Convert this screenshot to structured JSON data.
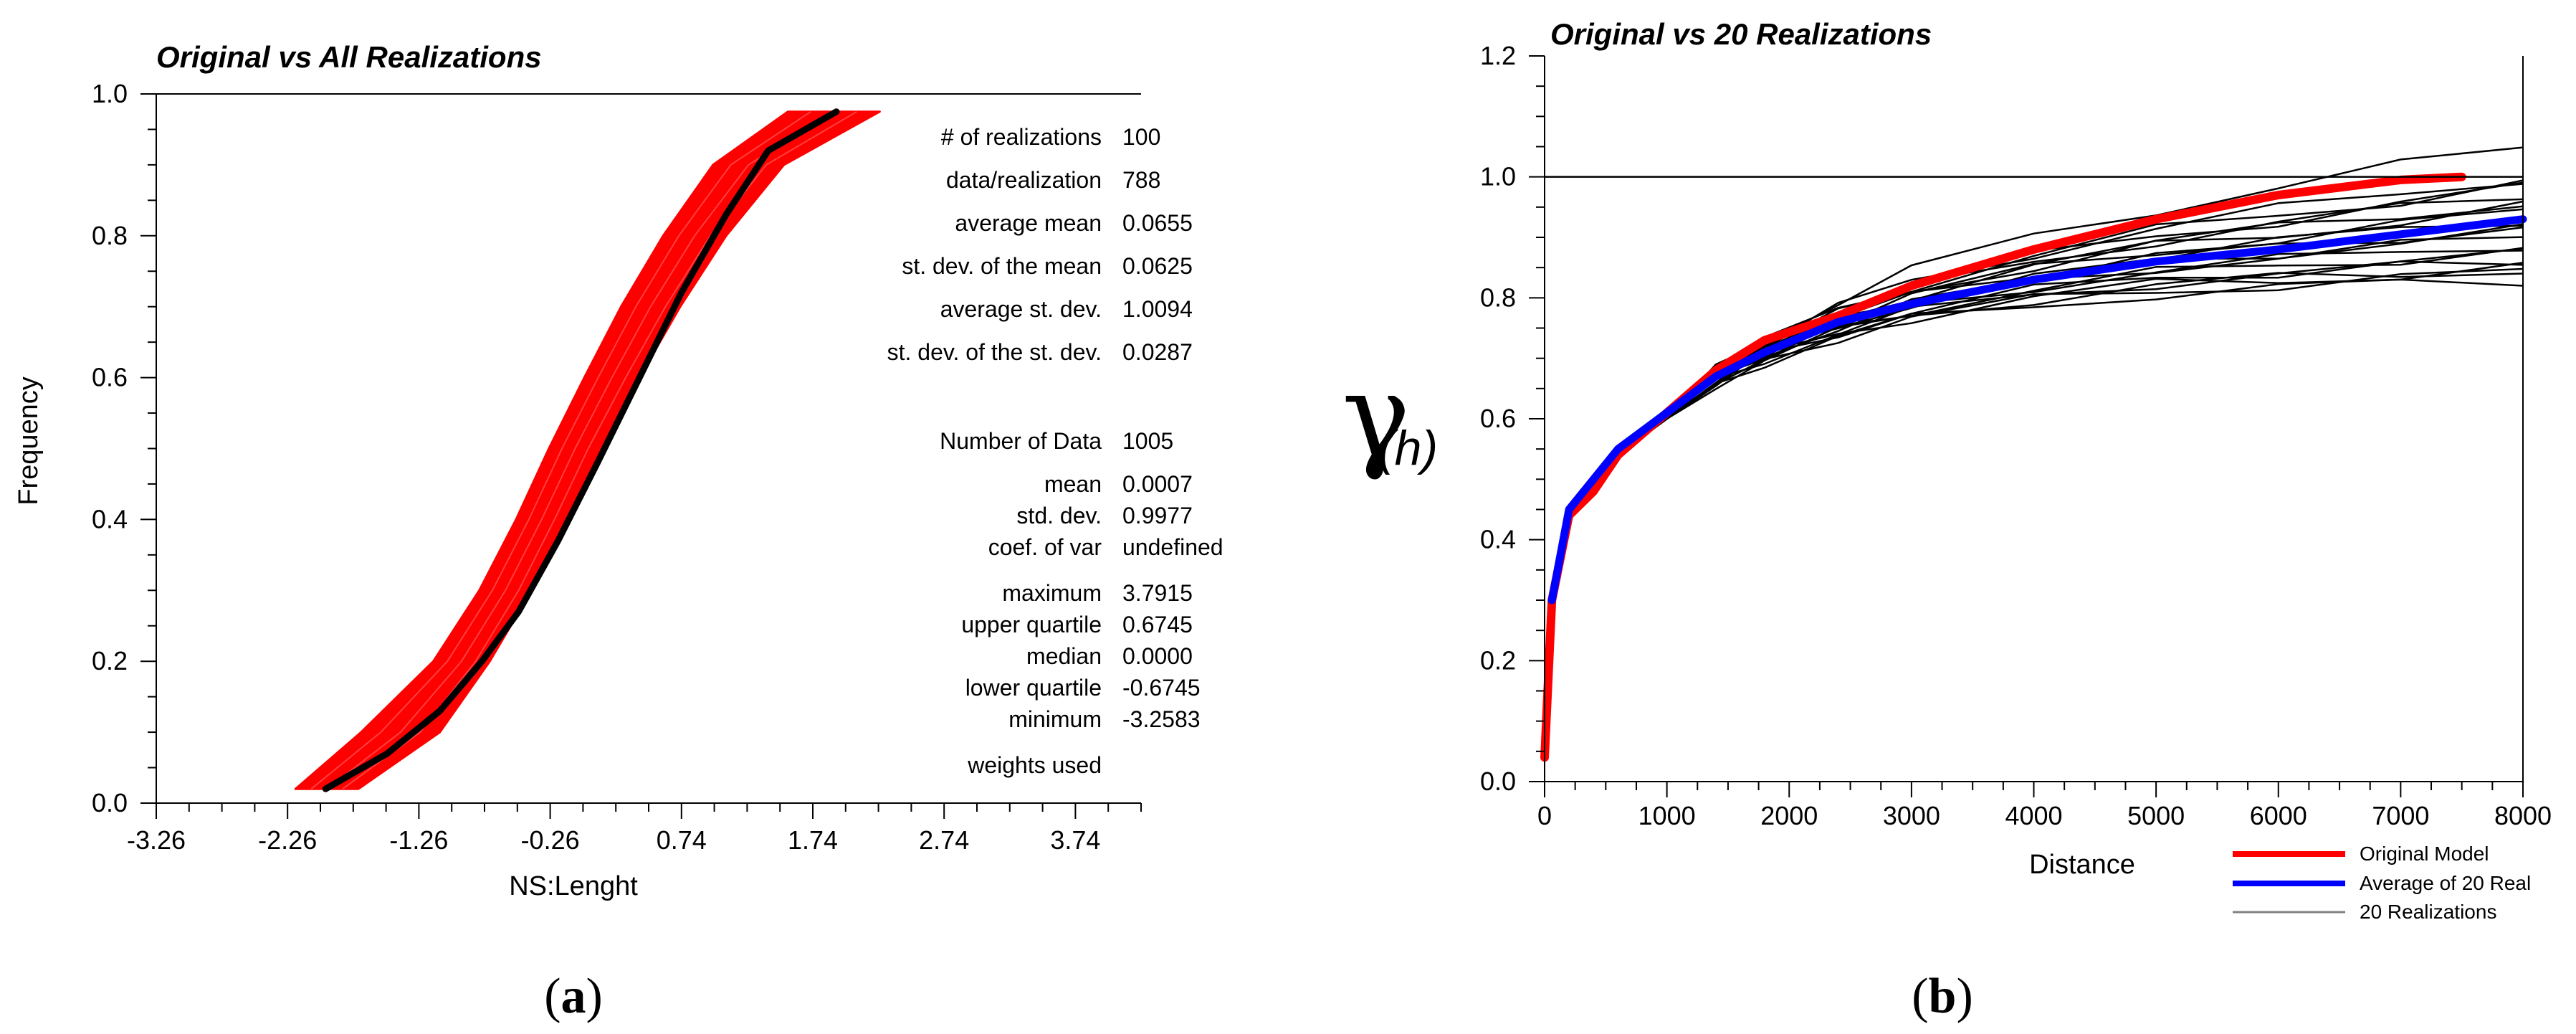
{
  "chart_data": [
    {
      "type": "line",
      "panel_label": "a",
      "title": "Original vs All Realizations",
      "xlabel": "NS:Lenght",
      "ylabel": "Frequency",
      "xlim": [
        -3.26,
        4.24
      ],
      "ylim": [
        0.0,
        1.0
      ],
      "xticks": [
        "-3.26",
        "-2.26",
        "-1.26",
        "-0.26",
        "0.74",
        "1.74",
        "2.74",
        "3.74"
      ],
      "xtick_values": [
        -3.26,
        -2.26,
        -1.26,
        -0.26,
        0.74,
        1.74,
        2.74,
        3.74
      ],
      "yticks": [
        "0.0",
        "0.2",
        "0.4",
        "0.6",
        "0.8",
        "1.0"
      ],
      "ytick_values": [
        0.0,
        0.2,
        0.4,
        0.6,
        0.8,
        1.0
      ],
      "series": [
        {
          "name": "Original",
          "color": "#000000",
          "x": [
            -1.97,
            -1.5,
            -1.1,
            -0.78,
            -0.5,
            -0.2,
            0.1,
            0.42,
            0.74,
            1.08,
            1.4,
            1.92
          ],
          "y": [
            0.02,
            0.07,
            0.13,
            0.2,
            0.27,
            0.37,
            0.48,
            0.6,
            0.72,
            0.83,
            0.92,
            0.975
          ]
        }
      ],
      "realizations_band": {
        "name": "All Realizations",
        "color": "#ff0000",
        "y": [
          0.02,
          0.1,
          0.2,
          0.3,
          0.4,
          0.5,
          0.6,
          0.7,
          0.8,
          0.9,
          0.975
        ],
        "x_lower": [
          -2.2,
          -1.7,
          -1.15,
          -0.8,
          -0.52,
          -0.27,
          0.0,
          0.28,
          0.6,
          0.98,
          1.55
        ],
        "x_upper": [
          -1.72,
          -1.1,
          -0.72,
          -0.4,
          -0.13,
          0.13,
          0.42,
          0.73,
          1.08,
          1.52,
          2.25
        ]
      },
      "stats": [
        {
          "label": "# of realizations",
          "value": "100"
        },
        {
          "label": "data/realization",
          "value": "788"
        },
        {
          "label": "average mean",
          "value": "0.0655"
        },
        {
          "label": "st. dev. of the mean",
          "value": "0.0625"
        },
        {
          "label": "average st. dev.",
          "value": "1.0094"
        },
        {
          "label": "st. dev. of the st. dev.",
          "value": "0.0287"
        },
        {
          "label": "Number of Data",
          "value": "1005"
        },
        {
          "label": "mean",
          "value": "0.0007"
        },
        {
          "label": "std. dev.",
          "value": "0.9977"
        },
        {
          "label": "coef. of var",
          "value": "undefined"
        },
        {
          "label": "maximum",
          "value": "3.7915"
        },
        {
          "label": "upper quartile",
          "value": "0.6745"
        },
        {
          "label": "median",
          "value": "0.0000"
        },
        {
          "label": "lower quartile",
          "value": "-0.6745"
        },
        {
          "label": "minimum",
          "value": "-3.2583"
        },
        {
          "label": "weights used",
          "value": ""
        }
      ]
    },
    {
      "type": "line",
      "panel_label": "b",
      "title": "Original vs 20 Realizations",
      "xlabel": "Distance",
      "ylabel_symbol": "γ",
      "ylabel_sub": "(h)",
      "xlim": [
        0,
        8000
      ],
      "ylim": [
        0.0,
        1.2
      ],
      "xticks": [
        "0",
        "1000",
        "2000",
        "3000",
        "4000",
        "5000",
        "6000",
        "7000",
        "8000"
      ],
      "xtick_values": [
        0,
        1000,
        2000,
        3000,
        4000,
        5000,
        6000,
        7000,
        8000
      ],
      "yticks": [
        "0.0",
        "0.2",
        "0.4",
        "0.6",
        "0.8",
        "1.0",
        "1.2"
      ],
      "ytick_values": [
        0.0,
        0.2,
        0.4,
        0.6,
        0.8,
        1.0,
        1.2
      ],
      "reference_line": 1.0,
      "series": [
        {
          "name": "Original Model",
          "color": "#ff0000",
          "x": [
            0,
            60,
            200,
            400,
            600,
            1000,
            1400,
            1800,
            2400,
            3000,
            4000,
            5000,
            6000,
            7000,
            7500
          ],
          "y": [
            0.04,
            0.3,
            0.44,
            0.48,
            0.54,
            0.61,
            0.68,
            0.73,
            0.77,
            0.82,
            0.88,
            0.93,
            0.97,
            0.995,
            1.0
          ]
        },
        {
          "name": "Average of 20 Real",
          "color": "#0000ff",
          "x": [
            60,
            200,
            400,
            600,
            1000,
            1400,
            1800,
            2400,
            3000,
            4000,
            5000,
            6000,
            7000,
            8000
          ],
          "y": [
            0.3,
            0.45,
            0.5,
            0.55,
            0.61,
            0.67,
            0.71,
            0.76,
            0.79,
            0.83,
            0.86,
            0.88,
            0.905,
            0.93
          ]
        }
      ],
      "realizations": {
        "name": "20 Realizations",
        "color": "#000000",
        "count": 20,
        "final_values": [
          1.05,
          1.0,
          0.99,
          0.98,
          0.97,
          0.96,
          0.95,
          0.94,
          0.93,
          0.92,
          0.91,
          0.9,
          0.89,
          0.88,
          0.87,
          0.86,
          0.85,
          0.85,
          0.84,
          0.83
        ]
      },
      "legend": [
        {
          "label": "Original Model",
          "color": "#ff0000"
        },
        {
          "label": "Average of 20 Real",
          "color": "#0000ff"
        },
        {
          "label": "20 Realizations",
          "color": "#808080"
        }
      ]
    }
  ]
}
